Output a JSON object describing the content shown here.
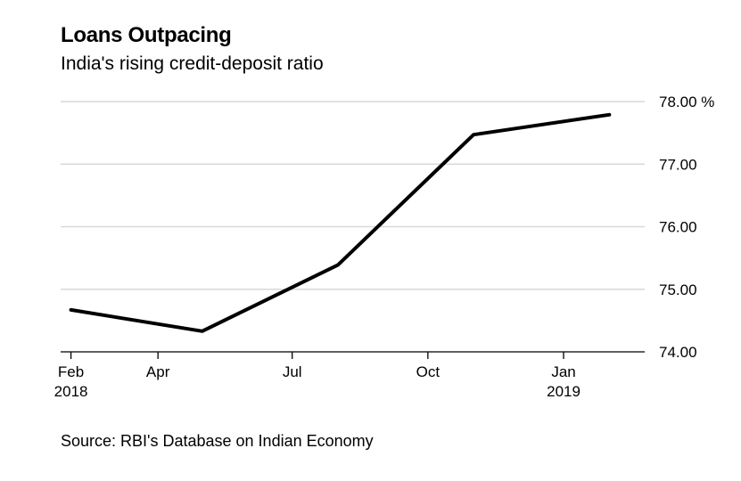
{
  "chart_data": {
    "type": "line",
    "title": "Loans Outpacing",
    "subtitle": "India's rising credit-deposit ratio",
    "source": "Source: RBI's Database on Indian Economy",
    "ylim": [
      74.0,
      78.0
    ],
    "yticks": [
      {
        "value": 78.0,
        "label": "78.00 %"
      },
      {
        "value": 77.0,
        "label": "77.00"
      },
      {
        "value": 76.0,
        "label": "76.00"
      },
      {
        "value": 75.0,
        "label": "75.00"
      },
      {
        "value": 74.0,
        "label": "74.00"
      }
    ],
    "xlim": [
      "2018-01-25",
      "2019-02-25"
    ],
    "xticks": [
      {
        "date": "2018-02-01",
        "label": "Feb",
        "sublabel": "2018"
      },
      {
        "date": "2018-04-01",
        "label": "Apr",
        "sublabel": ""
      },
      {
        "date": "2018-07-01",
        "label": "Jul",
        "sublabel": ""
      },
      {
        "date": "2018-10-01",
        "label": "Oct",
        "sublabel": ""
      },
      {
        "date": "2019-01-01",
        "label": "Jan",
        "sublabel": "2019"
      }
    ],
    "grid": true,
    "series": [
      {
        "color": "#000000",
        "points": [
          {
            "x": "2018-02-01",
            "y": 74.67
          },
          {
            "x": "2018-05-01",
            "y": 74.33
          },
          {
            "x": "2018-08-01",
            "y": 75.39
          },
          {
            "x": "2018-11-01",
            "y": 77.47
          },
          {
            "x": "2019-02-01",
            "y": 77.79
          }
        ]
      }
    ]
  }
}
